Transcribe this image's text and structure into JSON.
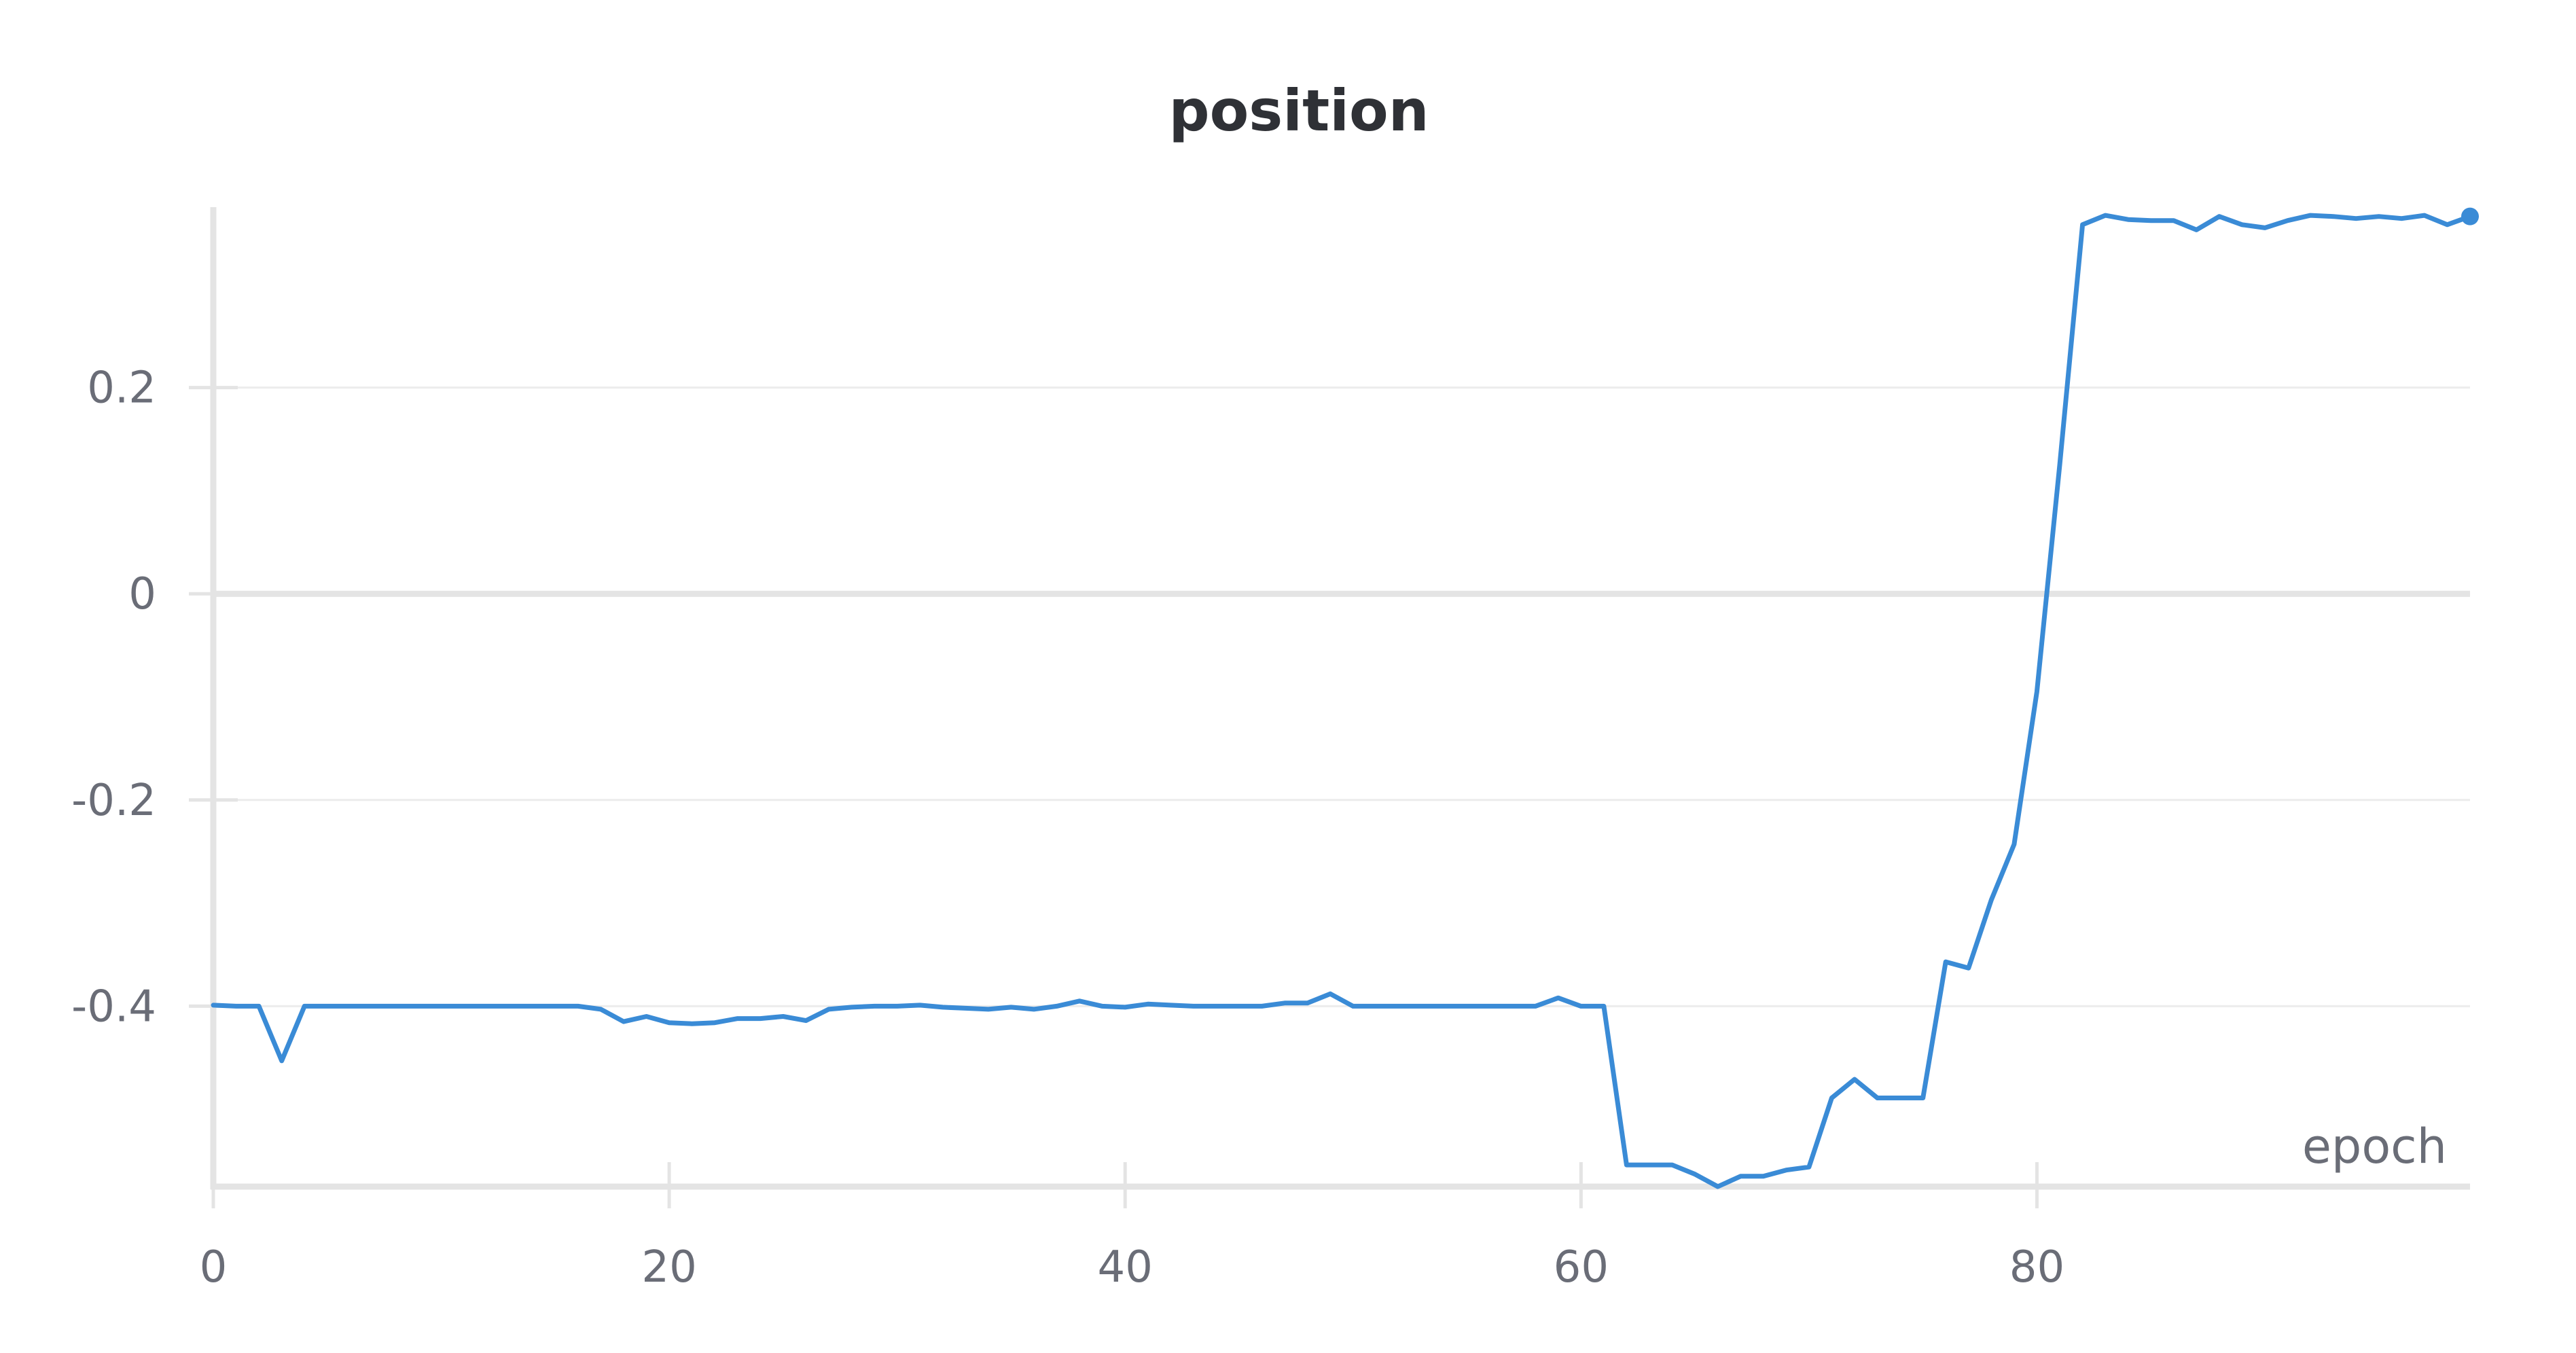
{
  "chart_data": {
    "type": "line",
    "title": "position",
    "xlabel": "epoch",
    "ylabel": "",
    "xlim": [
      0,
      99
    ],
    "ylim": [
      -0.575,
      0.375
    ],
    "x_ticks": [
      0,
      20,
      40,
      60,
      80
    ],
    "y_ticks": [
      0.2,
      0,
      -0.2,
      -0.4
    ],
    "y_tick_labels": [
      "0.2",
      "0",
      "-0.2",
      "-0.4"
    ],
    "grid": "horizontal",
    "colors": {
      "line": "#3a8bd6",
      "axis": "#e4e4e4",
      "grid": "#ececec",
      "text": "#6a6d77",
      "title": "#2f3136"
    },
    "series": [
      {
        "x": [
          0,
          1,
          2,
          3,
          4,
          5,
          6,
          7,
          8,
          9,
          10,
          11,
          12,
          13,
          14,
          15,
          16,
          17,
          18,
          19,
          20,
          21,
          22,
          23,
          24,
          25,
          26,
          27,
          28,
          29,
          30,
          31,
          32,
          33,
          34,
          35,
          36,
          37,
          38,
          39,
          40,
          41,
          42,
          43,
          44,
          45,
          46,
          47,
          48,
          49,
          50,
          51,
          52,
          53,
          54,
          55,
          56,
          57,
          58,
          59,
          60,
          61,
          62,
          63,
          64,
          65,
          66,
          67,
          68,
          69,
          70,
          71,
          72,
          73,
          74,
          75,
          76,
          77,
          78,
          79,
          80,
          81,
          82,
          83,
          84,
          85,
          86,
          87,
          88,
          89,
          90,
          91,
          92,
          93,
          94,
          95,
          96,
          97,
          98,
          99
        ],
        "values": [
          -0.399,
          -0.4,
          -0.4,
          -0.453,
          -0.4,
          -0.4,
          -0.4,
          -0.4,
          -0.4,
          -0.4,
          -0.4,
          -0.4,
          -0.4,
          -0.4,
          -0.4,
          -0.4,
          -0.4,
          -0.403,
          -0.415,
          -0.41,
          -0.416,
          -0.417,
          -0.416,
          -0.412,
          -0.412,
          -0.41,
          -0.414,
          -0.403,
          -0.401,
          -0.4,
          -0.4,
          -0.399,
          -0.401,
          -0.402,
          -0.403,
          -0.401,
          -0.403,
          -0.4,
          -0.395,
          -0.4,
          -0.401,
          -0.398,
          -0.399,
          -0.4,
          -0.4,
          -0.4,
          -0.4,
          -0.397,
          -0.397,
          -0.388,
          -0.4,
          -0.4,
          -0.4,
          -0.4,
          -0.4,
          -0.4,
          -0.4,
          -0.4,
          -0.4,
          -0.392,
          -0.4,
          -0.4,
          -0.554,
          -0.554,
          -0.554,
          -0.563,
          -0.575,
          -0.565,
          -0.565,
          -0.559,
          -0.556,
          -0.489,
          -0.471,
          -0.489,
          -0.489,
          -0.489,
          -0.357,
          -0.363,
          -0.297,
          -0.243,
          -0.095,
          0.125,
          0.358,
          0.367,
          0.363,
          0.362,
          0.362,
          0.353,
          0.366,
          0.358,
          0.355,
          0.362,
          0.367,
          0.366,
          0.364,
          0.366,
          0.364,
          0.367,
          0.358,
          0.366
        ]
      }
    ]
  }
}
